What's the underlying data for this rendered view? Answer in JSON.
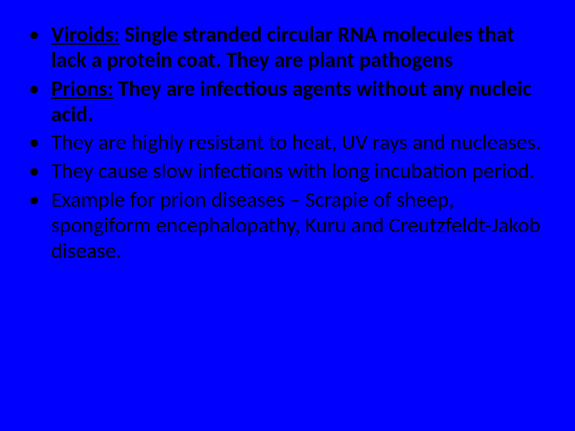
{
  "slide": {
    "background_color": "#0000ff",
    "text_color": "#000000",
    "font_family": "Calibri",
    "body_fontsize_pt": 27,
    "line_height": 1.18,
    "bullet_char": "•",
    "bullets": [
      {
        "term": "Viroids:",
        "rest": " Single stranded circular RNA molecules that lack a protein coat. They are plant pathogens"
      },
      {
        "term": "Prions:",
        "rest": " They are infectious agents without any nucleic acid."
      },
      {
        "plain": "They are highly resistant to heat, UV rays and nucleases."
      },
      {
        "plain": "They cause slow infections with long incubation period."
      },
      {
        "plain": "Example for prion diseases – Scrapie of sheep, spongiform encephalopathy, Kuru and Creutzfeldt-Jakob disease."
      }
    ]
  }
}
